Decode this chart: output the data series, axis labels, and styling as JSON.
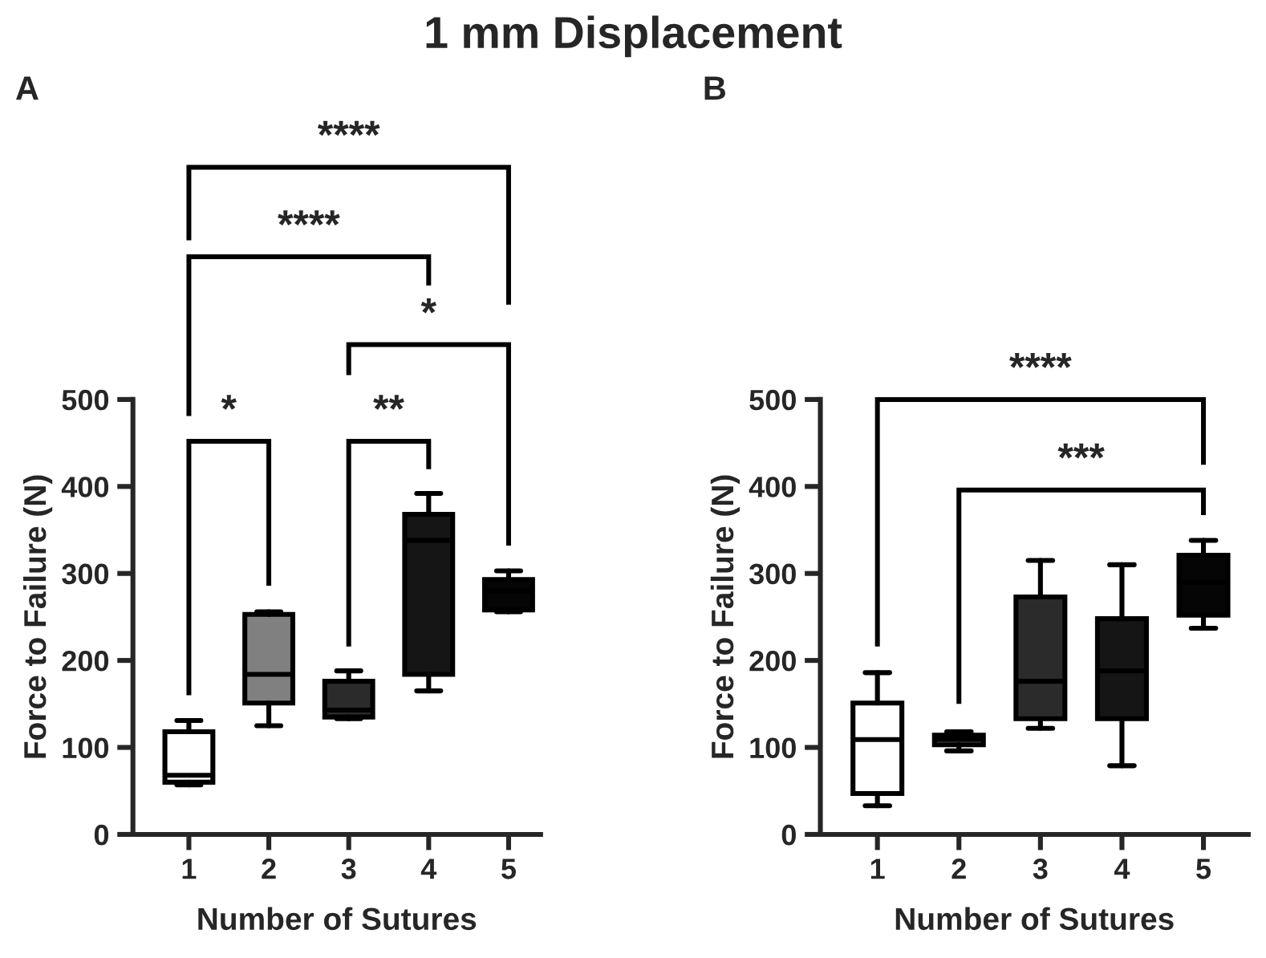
{
  "chart_data": [
    {
      "type": "box",
      "title": "1 mm Displacement",
      "xlabel": "Number of Sutures",
      "ylabel": "Force to Failure (N)",
      "categories": [
        "1",
        "2",
        "3",
        "4",
        "5"
      ],
      "ylim": [
        0,
        500
      ],
      "yticks": [
        0,
        100,
        200,
        300,
        400,
        500
      ],
      "grid": false,
      "legend": false,
      "colors": [
        "#ffffff",
        "#808080",
        "#2b2b2b",
        "#151515",
        "#050505"
      ],
      "boxes": [
        {
          "low": 57,
          "q1": 60,
          "median": 68,
          "q3": 118,
          "high": 131
        },
        {
          "low": 125,
          "q1": 151,
          "median": 184,
          "q3": 253,
          "high": 256
        },
        {
          "low": 133,
          "q1": 135,
          "median": 143,
          "q3": 176,
          "high": 188
        },
        {
          "low": 165,
          "q1": 184,
          "median": 338,
          "q3": 368,
          "high": 392
        },
        {
          "low": 256,
          "q1": 258,
          "median": 280,
          "q3": 293,
          "high": 303
        }
      ],
      "annotations": [
        "A",
        "*",
        "**",
        "*",
        "****",
        "****"
      ]
    },
    {
      "type": "box",
      "xlabel": "Number of Sutures",
      "ylabel": "Force to Failure (N)",
      "categories": [
        "1",
        "2",
        "3",
        "4",
        "5"
      ],
      "ylim": [
        0,
        500
      ],
      "yticks": [
        0,
        100,
        200,
        300,
        400,
        500
      ],
      "grid": false,
      "legend": false,
      "colors": [
        "#ffffff",
        "#8a8a8a",
        "#2b2b2b",
        "#151515",
        "#050505"
      ],
      "boxes": [
        {
          "low": 33,
          "q1": 47,
          "median": 109,
          "q3": 151,
          "high": 186
        },
        {
          "low": 96,
          "q1": 103,
          "median": 109,
          "q3": 114,
          "high": 118
        },
        {
          "low": 122,
          "q1": 133,
          "median": 176,
          "q3": 273,
          "high": 315
        },
        {
          "low": 79,
          "q1": 133,
          "median": 188,
          "q3": 248,
          "high": 310
        },
        {
          "low": 237,
          "q1": 252,
          "median": 290,
          "q3": 321,
          "high": 338
        }
      ],
      "annotations": [
        "B",
        "****",
        "***"
      ]
    }
  ]
}
